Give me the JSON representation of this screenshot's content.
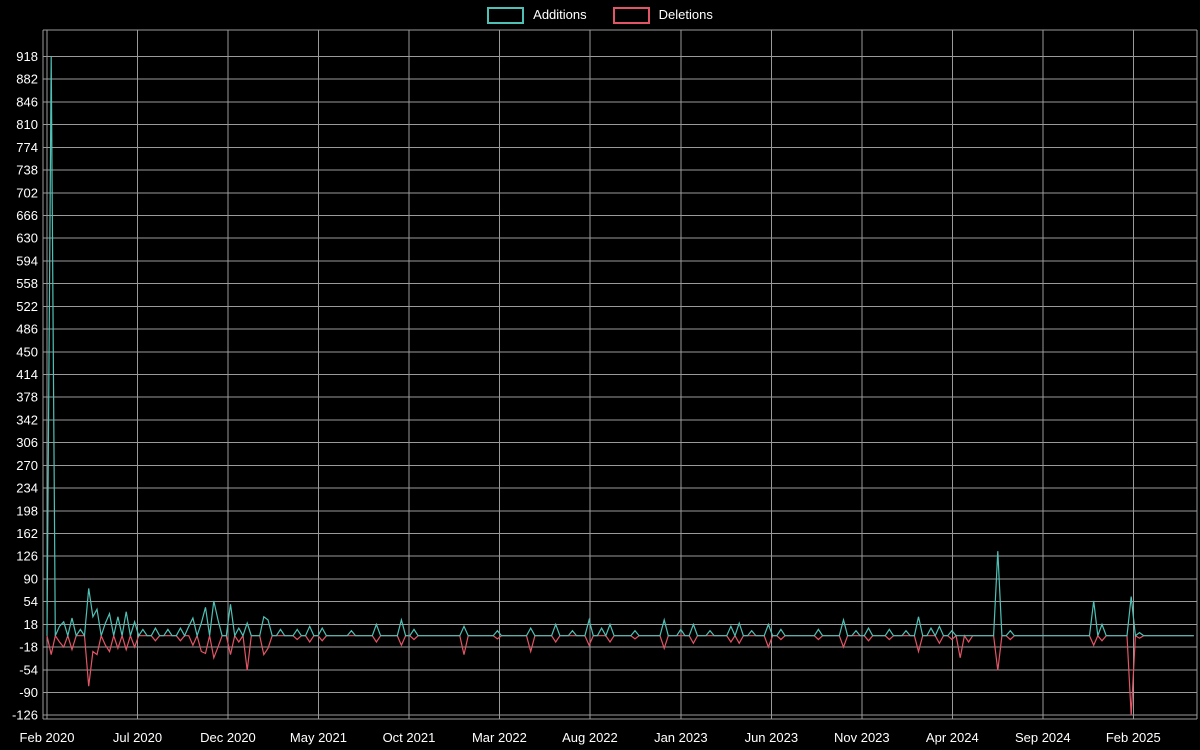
{
  "page": {
    "background": "#000000",
    "text_color": "#ffffff",
    "grid_color": "#9a9a9a"
  },
  "legend": {
    "position": "top-center",
    "items": [
      {
        "label": "Additions",
        "color": "#4fc0b5"
      },
      {
        "label": "Deletions",
        "color": "#e25566"
      }
    ]
  },
  "chart_data": {
    "type": "line",
    "title": "",
    "grid": true,
    "legend_position": "top-center",
    "x_tick_labels": [
      "Feb 2020",
      "Jul 2020",
      "Dec 2020",
      "May 2021",
      "Oct 2021",
      "Mar 2022",
      "Aug 2022",
      "Jan 2023",
      "Jun 2023",
      "Nov 2023",
      "Apr 2024",
      "Sep 2024",
      "Feb 2025"
    ],
    "x_tick_weeks": [
      0,
      21.7,
      43.4,
      65.1,
      86.8,
      108.5,
      130.2,
      152,
      173.7,
      195.4,
      217.1,
      238.8,
      260.5
    ],
    "y_tick_labels": [
      918,
      882,
      846,
      810,
      774,
      738,
      702,
      666,
      630,
      594,
      558,
      522,
      486,
      450,
      414,
      378,
      342,
      306,
      270,
      234,
      198,
      162,
      126,
      90,
      54,
      18,
      -18,
      -54,
      -90,
      -126
    ],
    "y_gridline_step": 36,
    "y_domain": [
      -132,
      960
    ],
    "weeks_total": 276,
    "baseline_value": 0,
    "x_range_description": "weekly commit code-frequency points, Feb 2020 through early 2025; weeks not listed in points are 0",
    "series": [
      {
        "name": "Additions",
        "color": "#4fc0b5",
        "points": [
          [
            1,
            918
          ],
          [
            3,
            15
          ],
          [
            4,
            22
          ],
          [
            6,
            28
          ],
          [
            8,
            10
          ],
          [
            10,
            75
          ],
          [
            11,
            30
          ],
          [
            12,
            42
          ],
          [
            14,
            20
          ],
          [
            15,
            35
          ],
          [
            17,
            30
          ],
          [
            19,
            38
          ],
          [
            21,
            22
          ],
          [
            23,
            10
          ],
          [
            26,
            12
          ],
          [
            29,
            10
          ],
          [
            32,
            12
          ],
          [
            34,
            15
          ],
          [
            35,
            28
          ],
          [
            37,
            20
          ],
          [
            38,
            45
          ],
          [
            40,
            55
          ],
          [
            41,
            25
          ],
          [
            44,
            50
          ],
          [
            46,
            12
          ],
          [
            48,
            20
          ],
          [
            52,
            30
          ],
          [
            53,
            25
          ],
          [
            56,
            10
          ],
          [
            60,
            10
          ],
          [
            63,
            15
          ],
          [
            66,
            12
          ],
          [
            73,
            8
          ],
          [
            79,
            18
          ],
          [
            85,
            25
          ],
          [
            88,
            10
          ],
          [
            100,
            15
          ],
          [
            108,
            8
          ],
          [
            116,
            12
          ],
          [
            122,
            18
          ],
          [
            126,
            8
          ],
          [
            130,
            25
          ],
          [
            133,
            12
          ],
          [
            135,
            18
          ],
          [
            141,
            8
          ],
          [
            148,
            25
          ],
          [
            152,
            10
          ],
          [
            155,
            18
          ],
          [
            159,
            8
          ],
          [
            164,
            15
          ],
          [
            166,
            20
          ],
          [
            169,
            8
          ],
          [
            173,
            18
          ],
          [
            176,
            10
          ],
          [
            185,
            10
          ],
          [
            191,
            25
          ],
          [
            194,
            8
          ],
          [
            197,
            12
          ],
          [
            202,
            10
          ],
          [
            206,
            8
          ],
          [
            209,
            30
          ],
          [
            212,
            12
          ],
          [
            214,
            15
          ],
          [
            217,
            8
          ],
          [
            228,
            134
          ],
          [
            231,
            8
          ],
          [
            251,
            55
          ],
          [
            253,
            18
          ],
          [
            260,
            62
          ],
          [
            262,
            5
          ]
        ]
      },
      {
        "name": "Deletions",
        "color": "#e25566",
        "points": [
          [
            1,
            -30
          ],
          [
            3,
            -10
          ],
          [
            4,
            -18
          ],
          [
            6,
            -22
          ],
          [
            10,
            -80
          ],
          [
            11,
            -25
          ],
          [
            12,
            -30
          ],
          [
            14,
            -15
          ],
          [
            15,
            -25
          ],
          [
            17,
            -20
          ],
          [
            19,
            -22
          ],
          [
            21,
            -18
          ],
          [
            26,
            -8
          ],
          [
            32,
            -8
          ],
          [
            35,
            -15
          ],
          [
            37,
            -25
          ],
          [
            38,
            -28
          ],
          [
            40,
            -35
          ],
          [
            41,
            -18
          ],
          [
            44,
            -30
          ],
          [
            46,
            -10
          ],
          [
            48,
            -55
          ],
          [
            52,
            -30
          ],
          [
            53,
            -20
          ],
          [
            60,
            -6
          ],
          [
            63,
            -10
          ],
          [
            66,
            -8
          ],
          [
            79,
            -10
          ],
          [
            85,
            -15
          ],
          [
            88,
            -6
          ],
          [
            100,
            -30
          ],
          [
            108,
            -5
          ],
          [
            116,
            -25
          ],
          [
            122,
            -10
          ],
          [
            130,
            -15
          ],
          [
            135,
            -10
          ],
          [
            141,
            -5
          ],
          [
            148,
            -20
          ],
          [
            155,
            -12
          ],
          [
            164,
            -10
          ],
          [
            166,
            -12
          ],
          [
            173,
            -18
          ],
          [
            176,
            -6
          ],
          [
            185,
            -6
          ],
          [
            191,
            -18
          ],
          [
            197,
            -8
          ],
          [
            202,
            -6
          ],
          [
            209,
            -25
          ],
          [
            214,
            -12
          ],
          [
            217,
            -6
          ],
          [
            219,
            -35
          ],
          [
            221,
            -10
          ],
          [
            228,
            -55
          ],
          [
            231,
            -6
          ],
          [
            251,
            -15
          ],
          [
            253,
            -8
          ],
          [
            260,
            -126
          ],
          [
            262,
            -4
          ]
        ]
      }
    ]
  }
}
